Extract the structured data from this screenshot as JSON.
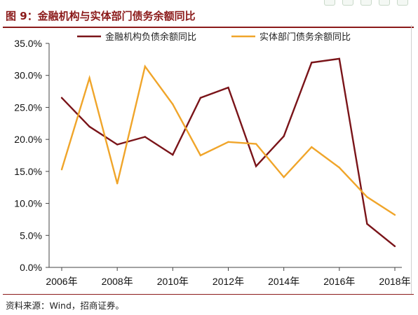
{
  "figure": {
    "title": "图 9：金融机构与实体部门债务余额同比",
    "source": "资料来源：Wind，招商证券。"
  },
  "colors": {
    "title": "#8b1a1a",
    "series_financial": "#7a1419",
    "series_real": "#f0a52a"
  },
  "chart_data": {
    "type": "line",
    "x": [
      2006,
      2007,
      2008,
      2009,
      2010,
      2011,
      2012,
      2013,
      2014,
      2015,
      2016,
      2017,
      2018
    ],
    "xtick_labels": [
      "2006年",
      "2008年",
      "2010年",
      "2012年",
      "2014年",
      "2016年",
      "2018年"
    ],
    "ytick_labels": [
      "0.0%",
      "5.0%",
      "10.0%",
      "15.0%",
      "20.0%",
      "25.0%",
      "30.0%",
      "35.0%"
    ],
    "ylim": [
      0,
      35
    ],
    "grid": false,
    "legend_position": "top",
    "series": [
      {
        "name": "金融机构负债余额同比",
        "values": [
          26.5,
          22.0,
          19.2,
          20.4,
          17.6,
          26.5,
          28.1,
          15.8,
          20.5,
          32.0,
          32.6,
          6.8,
          3.3
        ]
      },
      {
        "name": "实体部门债务余额同比",
        "values": [
          15.3,
          29.6,
          13.1,
          31.4,
          25.5,
          17.5,
          19.6,
          19.3,
          14.1,
          18.8,
          15.6,
          11.0,
          8.2
        ]
      }
    ]
  }
}
